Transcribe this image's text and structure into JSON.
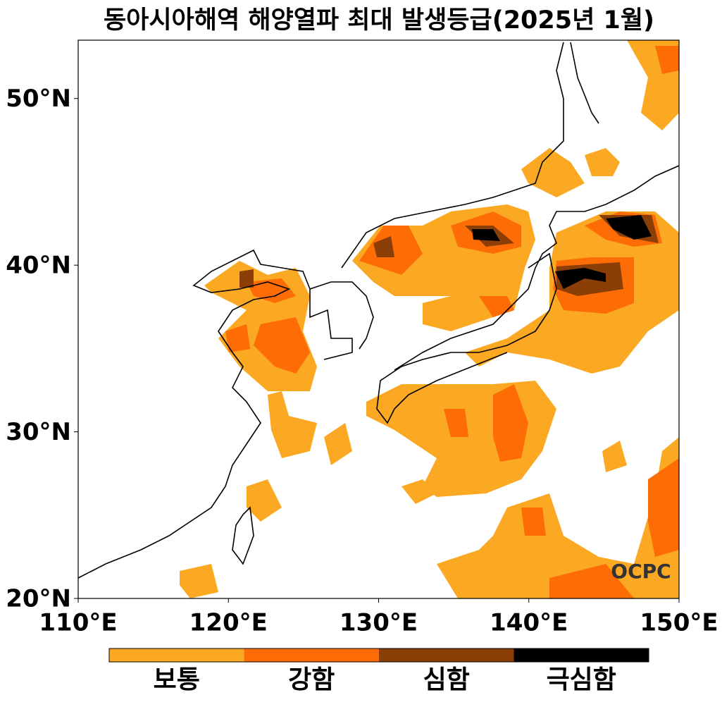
{
  "map": {
    "title": "동아시아해역 해양열파 최대 발생등급(2025년 1월)",
    "xlim": [
      110,
      150
    ],
    "ylim": [
      20,
      53.5
    ],
    "xticks": [
      {
        "value": 110,
        "label": "110°E"
      },
      {
        "value": 120,
        "label": "120°E"
      },
      {
        "value": 130,
        "label": "130°E"
      },
      {
        "value": 140,
        "label": "140°E"
      },
      {
        "value": 150,
        "label": "150°E"
      }
    ],
    "yticks": [
      {
        "value": 20,
        "label": "20°N"
      },
      {
        "value": 30,
        "label": "30°N"
      },
      {
        "value": 40,
        "label": "40°N"
      },
      {
        "value": 50,
        "label": "50°N"
      }
    ],
    "legend": [
      {
        "name": "보통",
        "color": "#fba823"
      },
      {
        "name": "강함",
        "color": "#fd6c05"
      },
      {
        "name": "심함",
        "color": "#8b3f06"
      },
      {
        "name": "극심함",
        "color": "#000000"
      }
    ],
    "watermark": "OCPC"
  }
}
